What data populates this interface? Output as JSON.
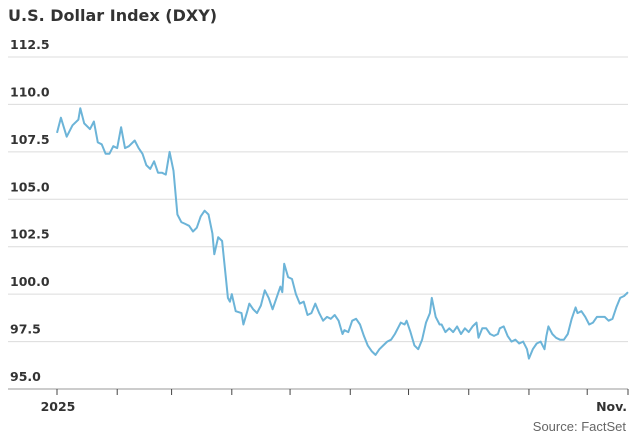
{
  "chart_data": {
    "type": "line",
    "title": "U.S. Dollar Index (DXY)",
    "xlabel": "",
    "ylabel": "",
    "ylim": [
      95.0,
      112.5
    ],
    "yticks": [
      "95.0",
      "97.5",
      "100.0",
      "102.5",
      "105.0",
      "107.5",
      "110.0",
      "112.5"
    ],
    "xtick_labels": [
      {
        "label": "2025",
        "day": 0
      },
      {
        "label": "Nov.",
        "day": 294
      }
    ],
    "month_tick_days": [
      0,
      31,
      59,
      90,
      120,
      151,
      181,
      212,
      243,
      273,
      294
    ],
    "grid": true,
    "line_color": "#6cb4d8",
    "series": [
      {
        "name": "DXY",
        "x_unit": "days since Jan 1, 2025 (approx.)",
        "points": [
          [
            0,
            108.5
          ],
          [
            2,
            109.3
          ],
          [
            5,
            108.3
          ],
          [
            8,
            108.9
          ],
          [
            11,
            109.2
          ],
          [
            12,
            109.8
          ],
          [
            14,
            109.0
          ],
          [
            17,
            108.7
          ],
          [
            19,
            109.1
          ],
          [
            21,
            108.0
          ],
          [
            23,
            107.9
          ],
          [
            25,
            107.4
          ],
          [
            27,
            107.4
          ],
          [
            29,
            107.8
          ],
          [
            31,
            107.7
          ],
          [
            33,
            108.8
          ],
          [
            35,
            107.7
          ],
          [
            37,
            107.8
          ],
          [
            40,
            108.1
          ],
          [
            42,
            107.7
          ],
          [
            44,
            107.4
          ],
          [
            46,
            106.8
          ],
          [
            48,
            106.6
          ],
          [
            50,
            107.0
          ],
          [
            52,
            106.4
          ],
          [
            54,
            106.4
          ],
          [
            56,
            106.3
          ],
          [
            58,
            107.5
          ],
          [
            60,
            106.5
          ],
          [
            62,
            104.2
          ],
          [
            64,
            103.8
          ],
          [
            66,
            103.7
          ],
          [
            68,
            103.6
          ],
          [
            70,
            103.3
          ],
          [
            72,
            103.5
          ],
          [
            74,
            104.1
          ],
          [
            76,
            104.4
          ],
          [
            78,
            104.2
          ],
          [
            80,
            103.2
          ],
          [
            81,
            102.1
          ],
          [
            83,
            103.0
          ],
          [
            85,
            102.8
          ],
          [
            87,
            100.8
          ],
          [
            88,
            99.8
          ],
          [
            89,
            99.6
          ],
          [
            90,
            100.0
          ],
          [
            92,
            99.1
          ],
          [
            95,
            99.0
          ],
          [
            96,
            98.4
          ],
          [
            98,
            99.1
          ],
          [
            99,
            99.5
          ],
          [
            101,
            99.2
          ],
          [
            103,
            99.0
          ],
          [
            105,
            99.4
          ],
          [
            107,
            100.2
          ],
          [
            109,
            99.8
          ],
          [
            111,
            99.2
          ],
          [
            113,
            99.8
          ],
          [
            115,
            100.4
          ],
          [
            116,
            100.1
          ],
          [
            117,
            101.6
          ],
          [
            119,
            100.9
          ],
          [
            121,
            100.8
          ],
          [
            123,
            100.0
          ],
          [
            125,
            99.5
          ],
          [
            127,
            99.6
          ],
          [
            129,
            98.9
          ],
          [
            131,
            99.0
          ],
          [
            133,
            99.5
          ],
          [
            135,
            99.0
          ],
          [
            137,
            98.6
          ],
          [
            139,
            98.8
          ],
          [
            141,
            98.7
          ],
          [
            143,
            98.9
          ],
          [
            145,
            98.6
          ],
          [
            147,
            97.9
          ],
          [
            148,
            98.1
          ],
          [
            150,
            98.0
          ],
          [
            152,
            98.6
          ],
          [
            154,
            98.7
          ],
          [
            156,
            98.4
          ],
          [
            158,
            97.8
          ],
          [
            160,
            97.3
          ],
          [
            162,
            97.0
          ],
          [
            164,
            96.8
          ],
          [
            166,
            97.1
          ],
          [
            168,
            97.3
          ],
          [
            170,
            97.5
          ],
          [
            172,
            97.6
          ],
          [
            174,
            97.9
          ],
          [
            176,
            98.3
          ],
          [
            177,
            98.5
          ],
          [
            179,
            98.4
          ],
          [
            180,
            98.6
          ],
          [
            182,
            98.0
          ],
          [
            184,
            97.3
          ],
          [
            186,
            97.1
          ],
          [
            188,
            97.6
          ],
          [
            190,
            98.5
          ],
          [
            192,
            99.0
          ],
          [
            193,
            99.8
          ],
          [
            195,
            98.8
          ],
          [
            197,
            98.4
          ],
          [
            198,
            98.4
          ],
          [
            200,
            98.0
          ],
          [
            202,
            98.2
          ],
          [
            204,
            98.0
          ],
          [
            206,
            98.3
          ],
          [
            208,
            97.9
          ],
          [
            210,
            98.2
          ],
          [
            212,
            98.0
          ],
          [
            214,
            98.3
          ],
          [
            216,
            98.5
          ],
          [
            217,
            97.7
          ],
          [
            219,
            98.2
          ],
          [
            221,
            98.2
          ],
          [
            223,
            97.9
          ],
          [
            225,
            97.8
          ],
          [
            227,
            97.9
          ],
          [
            228,
            98.2
          ],
          [
            230,
            98.3
          ],
          [
            232,
            97.8
          ],
          [
            234,
            97.5
          ],
          [
            236,
            97.6
          ],
          [
            238,
            97.4
          ],
          [
            240,
            97.5
          ],
          [
            242,
            97.1
          ],
          [
            243,
            96.6
          ],
          [
            245,
            97.1
          ],
          [
            247,
            97.4
          ],
          [
            249,
            97.5
          ],
          [
            251,
            97.1
          ],
          [
            252,
            97.8
          ],
          [
            253,
            98.3
          ],
          [
            255,
            97.9
          ],
          [
            257,
            97.7
          ],
          [
            259,
            97.6
          ],
          [
            261,
            97.6
          ],
          [
            263,
            97.9
          ],
          [
            265,
            98.7
          ],
          [
            267,
            99.3
          ],
          [
            268,
            99.0
          ],
          [
            270,
            99.1
          ],
          [
            272,
            98.8
          ],
          [
            274,
            98.4
          ],
          [
            276,
            98.5
          ],
          [
            278,
            98.8
          ],
          [
            280,
            98.8
          ],
          [
            282,
            98.8
          ],
          [
            284,
            98.6
          ],
          [
            286,
            98.7
          ],
          [
            288,
            99.3
          ],
          [
            290,
            99.8
          ],
          [
            292,
            99.9
          ],
          [
            294,
            100.1
          ]
        ]
      }
    ],
    "source": "Source: FactSet"
  }
}
